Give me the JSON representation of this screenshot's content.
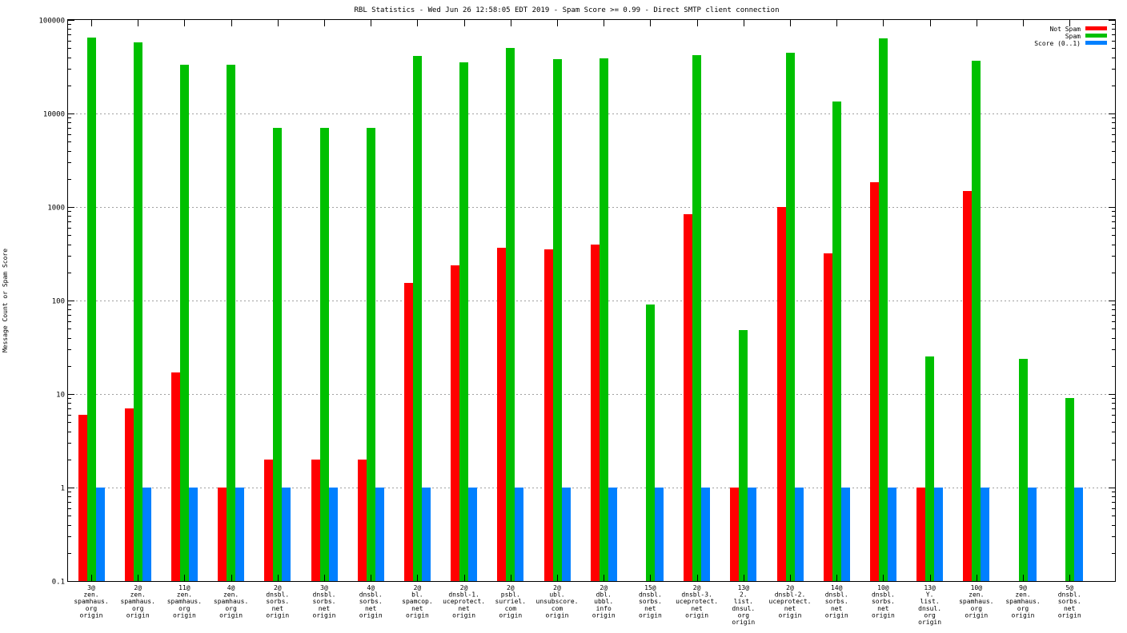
{
  "chart_data": {
    "type": "bar",
    "title": "RBL Statistics - Wed Jun 26 12:58:05 EDT 2019 - Spam Score >= 0.99 - Direct SMTP client connection",
    "xlabel": "",
    "ylabel": "Message Count or Spam Score",
    "yscale": "log",
    "ylim": [
      0.1,
      100000
    ],
    "yticks": [
      {
        "value": 0.1,
        "label": "0.1"
      },
      {
        "value": 1,
        "label": "1"
      },
      {
        "value": 10,
        "label": "10"
      },
      {
        "value": 100,
        "label": "100"
      },
      {
        "value": 1000,
        "label": "1000"
      },
      {
        "value": 10000,
        "label": "10000"
      },
      {
        "value": 100000,
        "label": "100000"
      }
    ],
    "grid": true,
    "legend_position": "top-right",
    "categories": [
      [
        "3@",
        "zen.",
        "spamhaus.",
        "org",
        "origin"
      ],
      [
        "2@",
        "zen.",
        "spamhaus.",
        "org",
        "origin"
      ],
      [
        "11@",
        "zen.",
        "spamhaus.",
        "org",
        "origin"
      ],
      [
        "4@",
        "zen.",
        "spamhaus.",
        "org",
        "origin"
      ],
      [
        "2@",
        "dnsbl.",
        "sorbs.",
        "net",
        "origin"
      ],
      [
        "3@",
        "dnsbl.",
        "sorbs.",
        "net",
        "origin"
      ],
      [
        "4@",
        "dnsbl.",
        "sorbs.",
        "net",
        "origin"
      ],
      [
        "2@",
        "bl.",
        "spamcop.",
        "net",
        "origin"
      ],
      [
        "2@",
        "dnsbl-1.",
        "uceprotect.",
        "net",
        "origin"
      ],
      [
        "2@",
        "psbl.",
        "surriel.",
        "com",
        "origin"
      ],
      [
        "2@",
        "ubl.",
        "unsubscore.",
        "com",
        "origin"
      ],
      [
        "2@",
        "dbl.",
        "ubbl.",
        "info",
        "origin"
      ],
      [
        "15@",
        "dnsbl.",
        "sorbs.",
        "net",
        "origin"
      ],
      [
        "2@",
        "dnsbl-3.",
        "uceprotect.",
        "net",
        "origin"
      ],
      [
        "13@",
        "2.",
        "list.",
        "dnsul.",
        "org",
        "origin"
      ],
      [
        "2@",
        "dnsbl-2.",
        "uceprotect.",
        "net",
        "origin"
      ],
      [
        "14@",
        "dnsbl.",
        "sorbs.",
        "net",
        "origin"
      ],
      [
        "10@",
        "dnsbl.",
        "sorbs.",
        "net",
        "origin"
      ],
      [
        "13@",
        "Y.",
        "list.",
        "dnsul.",
        "org",
        "origin"
      ],
      [
        "10@",
        "zen.",
        "spamhaus.",
        "org",
        "origin"
      ],
      [
        "9@",
        "zen.",
        "spamhaus.",
        "org",
        "origin"
      ],
      [
        "5@",
        "dnsbl.",
        "sorbs.",
        "net",
        "origin"
      ]
    ],
    "series": [
      {
        "name": "Not Spam",
        "color": "#ff0000",
        "values": [
          6,
          7,
          17,
          1,
          2,
          2,
          2,
          155,
          240,
          370,
          350,
          400,
          null,
          830,
          1,
          1000,
          320,
          1850,
          1,
          1480,
          null,
          null
        ]
      },
      {
        "name": "Spam",
        "color": "#00c000",
        "values": [
          65000,
          58000,
          33000,
          33000,
          7000,
          7000,
          7000,
          41000,
          35000,
          50000,
          38000,
          39000,
          90,
          42000,
          48,
          45000,
          13500,
          63000,
          25,
          36500,
          24,
          9
        ]
      },
      {
        "name": "Score (0..1)",
        "color": "#0080ff",
        "values": [
          1,
          1,
          1,
          1,
          1,
          1,
          1,
          1,
          1,
          1,
          1,
          1,
          1,
          1,
          1,
          1,
          1,
          1,
          1,
          1,
          1,
          1
        ]
      }
    ]
  }
}
